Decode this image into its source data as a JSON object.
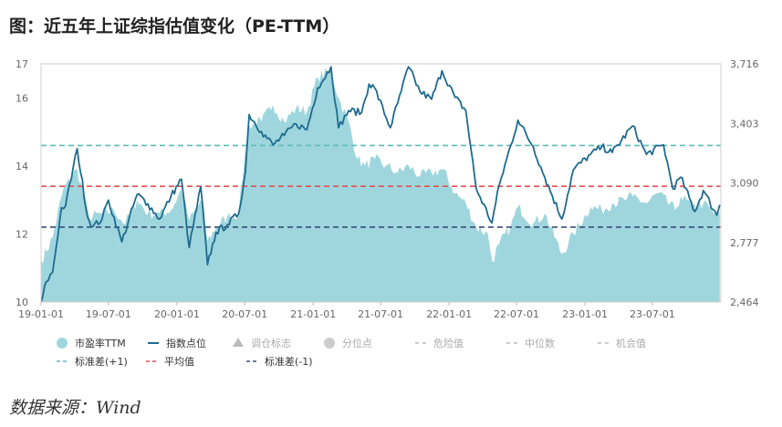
{
  "figure": {
    "title": "图：近五年上证综指估值变化（PE-TTM）",
    "source": "数据来源：Wind"
  },
  "colors": {
    "pe_fill": "#9fd6de",
    "index_line": "#1f6b8e",
    "danger_line": "#5bbcb6",
    "mean_line": "#e45050",
    "chance_line": "#3a4e7a",
    "axis": "#cfcfcf"
  },
  "chart_data": {
    "type": "area",
    "x_ticks": [
      "19-01-01",
      "19-07-01",
      "20-01-01",
      "20-07-01",
      "21-01-01",
      "21-07-01",
      "22-01-01",
      "22-07-01",
      "23-01-01",
      "23-07-01"
    ],
    "y_left": {
      "ticks": [
        "10",
        "12",
        "14",
        "16",
        "17"
      ],
      "range": [
        10,
        17
      ]
    },
    "y_right": {
      "ticks": [
        "2,464",
        "2,777",
        "3,090",
        "3,403",
        "3,716"
      ],
      "range": [
        2464,
        3716
      ]
    },
    "reference_lines": [
      {
        "name": "标准差(+1)",
        "y": 14.6
      },
      {
        "name": "平均值",
        "y": 13.4
      },
      {
        "name": "标准差(-1)",
        "y": 12.2
      }
    ],
    "series": [
      {
        "name": "市盈率TTM",
        "axis": "left",
        "points": [
          [
            "2019-01-02",
            11.2
          ],
          [
            "2019-02-01",
            11.9
          ],
          [
            "2019-03-01",
            13.3
          ],
          [
            "2019-04-08",
            13.9
          ],
          [
            "2019-05-10",
            12.5
          ],
          [
            "2019-06-14",
            12.6
          ],
          [
            "2019-07-15",
            12.7
          ],
          [
            "2019-08-15",
            12.3
          ],
          [
            "2019-09-16",
            13.0
          ],
          [
            "2019-10-15",
            12.6
          ],
          [
            "2019-11-15",
            12.6
          ],
          [
            "2019-12-16",
            12.7
          ],
          [
            "2020-01-13",
            13.3
          ],
          [
            "2020-02-03",
            12.4
          ],
          [
            "2020-03-09",
            13.0
          ],
          [
            "2020-03-23",
            11.8
          ],
          [
            "2020-04-15",
            12.2
          ],
          [
            "2020-05-15",
            12.5
          ],
          [
            "2020-06-15",
            12.6
          ],
          [
            "2020-07-01",
            14.3
          ],
          [
            "2020-07-13",
            15.2
          ],
          [
            "2020-08-15",
            15.3
          ],
          [
            "2020-09-15",
            15.8
          ],
          [
            "2020-10-15",
            15.3
          ],
          [
            "2020-11-16",
            15.7
          ],
          [
            "2020-12-15",
            15.6
          ],
          [
            "2021-01-13",
            16.6
          ],
          [
            "2021-02-18",
            16.8
          ],
          [
            "2021-03-10",
            16.0
          ],
          [
            "2021-04-06",
            15.3
          ],
          [
            "2021-04-30",
            14.2
          ],
          [
            "2021-05-20",
            14.0
          ],
          [
            "2021-06-15",
            14.2
          ],
          [
            "2021-07-15",
            14.0
          ],
          [
            "2021-08-16",
            13.8
          ],
          [
            "2021-09-15",
            14.0
          ],
          [
            "2021-10-15",
            13.7
          ],
          [
            "2021-11-15",
            13.8
          ],
          [
            "2021-12-15",
            13.9
          ],
          [
            "2022-01-17",
            13.2
          ],
          [
            "2022-02-15",
            12.9
          ],
          [
            "2022-03-15",
            12.2
          ],
          [
            "2022-04-15",
            12.0
          ],
          [
            "2022-04-27",
            11.2
          ],
          [
            "2022-05-16",
            11.7
          ],
          [
            "2022-06-15",
            12.2
          ],
          [
            "2022-07-05",
            12.8
          ],
          [
            "2022-08-15",
            12.3
          ],
          [
            "2022-09-15",
            12.6
          ],
          [
            "2022-10-31",
            11.4
          ],
          [
            "2022-12-01",
            12.0
          ],
          [
            "2023-01-16",
            12.8
          ],
          [
            "2023-02-15",
            12.7
          ],
          [
            "2023-03-15",
            12.9
          ],
          [
            "2023-04-17",
            13.0
          ],
          [
            "2023-05-09",
            13.1
          ],
          [
            "2023-06-15",
            12.9
          ],
          [
            "2023-07-17",
            13.2
          ],
          [
            "2023-08-31",
            12.7
          ],
          [
            "2023-09-15",
            13.1
          ],
          [
            "2023-10-16",
            12.8
          ],
          [
            "2023-11-15",
            12.9
          ],
          [
            "2023-12-15",
            12.6
          ],
          [
            "2023-12-29",
            12.6
          ]
        ]
      },
      {
        "name": "指数点位",
        "axis": "right",
        "points": [
          [
            "2019-01-02",
            2465
          ],
          [
            "2019-01-15",
            2570
          ],
          [
            "2019-02-01",
            2620
          ],
          [
            "2019-02-25",
            2960
          ],
          [
            "2019-03-08",
            2970
          ],
          [
            "2019-04-08",
            3270
          ],
          [
            "2019-05-06",
            2910
          ],
          [
            "2019-05-20",
            2860
          ],
          [
            "2019-06-14",
            2900
          ],
          [
            "2019-07-01",
            3000
          ],
          [
            "2019-08-06",
            2780
          ],
          [
            "2019-09-16",
            3030
          ],
          [
            "2019-10-15",
            2980
          ],
          [
            "2019-11-15",
            2900
          ],
          [
            "2019-12-16",
            3020
          ],
          [
            "2020-01-13",
            3110
          ],
          [
            "2020-02-03",
            2750
          ],
          [
            "2020-03-05",
            3070
          ],
          [
            "2020-03-23",
            2660
          ],
          [
            "2020-04-15",
            2830
          ],
          [
            "2020-05-15",
            2870
          ],
          [
            "2020-06-15",
            2930
          ],
          [
            "2020-07-03",
            3150
          ],
          [
            "2020-07-13",
            3450
          ],
          [
            "2020-08-15",
            3360
          ],
          [
            "2020-09-15",
            3290
          ],
          [
            "2020-10-15",
            3340
          ],
          [
            "2020-11-16",
            3400
          ],
          [
            "2020-12-15",
            3370
          ],
          [
            "2021-01-13",
            3590
          ],
          [
            "2021-02-18",
            3700
          ],
          [
            "2021-03-10",
            3380
          ],
          [
            "2021-04-06",
            3470
          ],
          [
            "2021-05-11",
            3460
          ],
          [
            "2021-05-31",
            3610
          ],
          [
            "2021-06-15",
            3590
          ],
          [
            "2021-07-27",
            3380
          ],
          [
            "2021-08-16",
            3510
          ],
          [
            "2021-09-14",
            3700
          ],
          [
            "2021-10-15",
            3570
          ],
          [
            "2021-11-15",
            3530
          ],
          [
            "2021-12-13",
            3680
          ],
          [
            "2022-01-17",
            3540
          ],
          [
            "2022-02-15",
            3470
          ],
          [
            "2022-03-15",
            3060
          ],
          [
            "2022-04-26",
            2880
          ],
          [
            "2022-05-16",
            3080
          ],
          [
            "2022-07-05",
            3420
          ],
          [
            "2022-08-15",
            3280
          ],
          [
            "2022-09-15",
            3120
          ],
          [
            "2022-10-31",
            2900
          ],
          [
            "2022-12-01",
            3160
          ],
          [
            "2023-01-16",
            3240
          ],
          [
            "2023-02-15",
            3280
          ],
          [
            "2023-03-15",
            3250
          ],
          [
            "2023-05-09",
            3390
          ],
          [
            "2023-06-15",
            3240
          ],
          [
            "2023-07-31",
            3290
          ],
          [
            "2023-08-25",
            3060
          ],
          [
            "2023-09-15",
            3120
          ],
          [
            "2023-10-23",
            2940
          ],
          [
            "2023-11-15",
            3050
          ],
          [
            "2023-12-21",
            2920
          ],
          [
            "2023-12-29",
            2975
          ]
        ]
      }
    ],
    "legend": {
      "placement": "bottom",
      "row1": [
        "市盈率TTM",
        "指数点位",
        "调仓标志",
        "分位点",
        "危险值",
        "中位数",
        "机会值"
      ],
      "row2": [
        "标准差(+1)",
        "平均值",
        "标准差(-1)"
      ]
    }
  }
}
